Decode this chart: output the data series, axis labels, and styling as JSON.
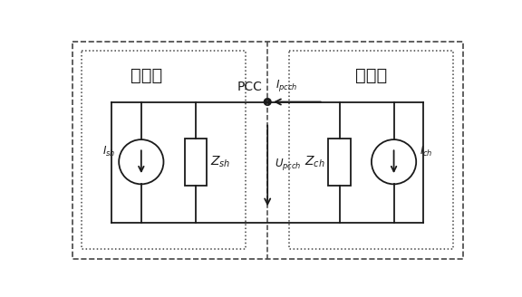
{
  "bg_color": "#ffffff",
  "line_color": "#1a1a1a",
  "dashed_color": "#444444",
  "fig_width": 5.76,
  "fig_height": 3.28,
  "dpi": 100,
  "system_label": "系统侧",
  "user_label": "用户侧",
  "pcc_label": "PCC",
  "I_pcch_label": "$\\mathit{I}_{pcch}$",
  "U_pcch_label": "$\\mathit{U}_{pcch}$",
  "I_sh_label": "$\\mathit{I}_{sh}$",
  "Z_sh_label": "$Z_{sh}$",
  "Z_ch_label": "$Z_{ch}$",
  "I_ch_label": "$\\mathit{I}_{ch}$"
}
